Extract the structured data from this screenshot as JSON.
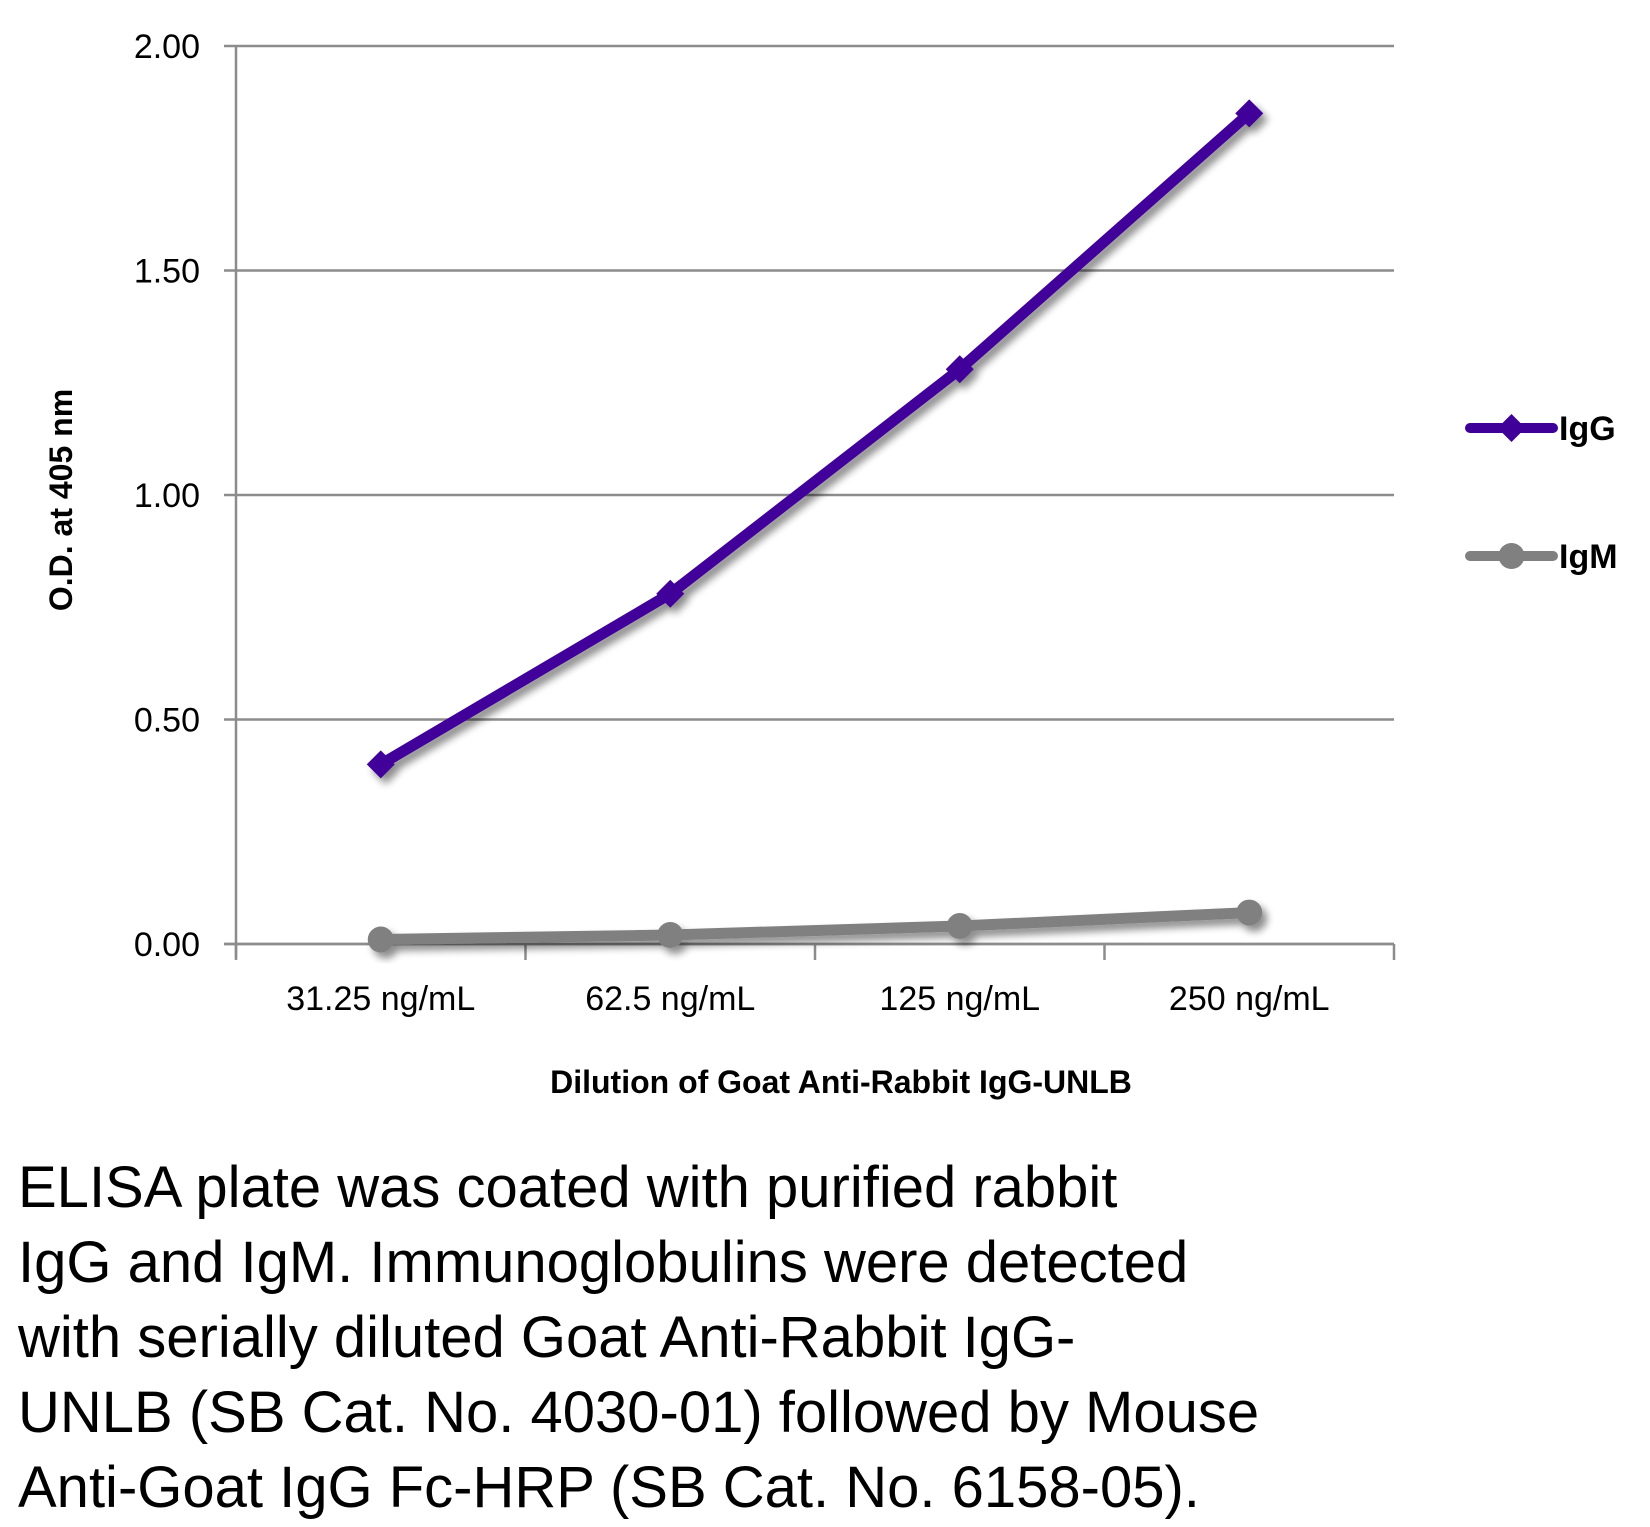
{
  "chart_data": {
    "type": "line",
    "title": "",
    "xlabel": "Dilution of Goat Anti-Rabbit IgG-UNLB",
    "ylabel": "O.D. at 405 nm",
    "categories": [
      "31.25 ng/mL",
      "62.5 ng/mL",
      "125 ng/mL",
      "250 ng/mL"
    ],
    "ylim": [
      0,
      2.0
    ],
    "yticks": [
      "0.00",
      "0.50",
      "1.00",
      "1.50",
      "2.00"
    ],
    "grid": true,
    "legend": "right",
    "series": [
      {
        "name": "IgG",
        "color": "#3f0099",
        "marker": "diamond",
        "values": [
          0.4,
          0.78,
          1.28,
          1.85
        ]
      },
      {
        "name": "IgM",
        "color": "#808080",
        "marker": "circle",
        "values": [
          0.01,
          0.02,
          0.04,
          0.07
        ]
      }
    ]
  },
  "caption": {
    "lines": [
      "ELISA plate was coated with purified rabbit",
      "IgG and IgM.  Immunoglobulins were detected",
      "with serially diluted Goat Anti-Rabbit IgG-",
      "UNLB (SB Cat. No. 4030-01) followed by Mouse",
      "Anti-Goat IgG Fc-HRP (SB Cat. No. 6158-05)."
    ]
  }
}
